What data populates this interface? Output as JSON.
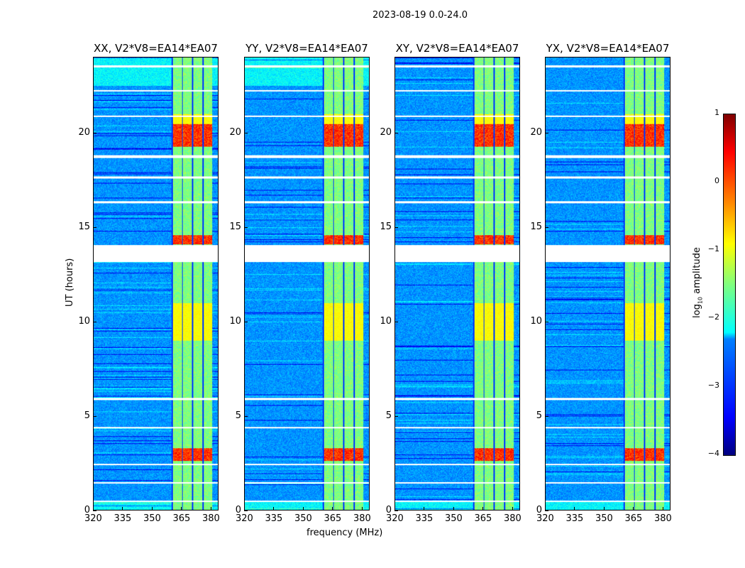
{
  "figure_title": "2023-08-19 0.0-24.0",
  "chart_data": [
    {
      "type": "heatmap",
      "title": "XX, V2*V8=EA14*EA07"
    },
    {
      "type": "heatmap",
      "title": "YY, V2*V8=EA14*EA07"
    },
    {
      "type": "heatmap",
      "title": "XY, V2*V8=EA14*EA07"
    },
    {
      "type": "heatmap",
      "title": "YX, V2*V8=EA14*EA07"
    }
  ],
  "axes": {
    "xlabel": "frequency (MHz)",
    "ylabel": "UT (hours)",
    "xlim": [
      320,
      384
    ],
    "ylim": [
      0,
      24
    ],
    "xticks": [
      "320",
      "335",
      "350",
      "365",
      "380"
    ],
    "xtick_values": [
      320,
      335,
      350,
      365,
      380
    ],
    "yticks": [
      "0",
      "5",
      "10",
      "15",
      "20"
    ],
    "ytick_values": [
      0,
      5,
      10,
      15,
      20
    ],
    "signal_band_mhz": [
      360,
      381
    ],
    "flagged_hours": [
      [
        0.45,
        0.52
      ],
      [
        1.42,
        1.5
      ],
      [
        2.38,
        2.45
      ],
      [
        4.35,
        4.42
      ],
      [
        5.85,
        5.95
      ],
      [
        13.15,
        14.05
      ],
      [
        16.3,
        16.4
      ],
      [
        17.6,
        17.7
      ],
      [
        18.7,
        18.85
      ],
      [
        20.85,
        20.95
      ],
      [
        22.2,
        22.3
      ],
      [
        23.5,
        23.6
      ]
    ],
    "strong_hours": [
      [
        2.6,
        3.3
      ],
      [
        14.1,
        14.6
      ],
      [
        19.3,
        20.5
      ]
    ],
    "moderate_hours": [
      [
        9.0,
        11.0
      ],
      [
        20.5,
        21.0
      ]
    ]
  },
  "colorbar": {
    "label": "log10 amplitude",
    "label_main": "log",
    "label_sub": "10",
    "label_rest": " amplitude",
    "range": [
      -4,
      1
    ],
    "ticks": [
      "1",
      "0",
      "−1",
      "−2",
      "−3",
      "−4"
    ],
    "tick_values": [
      1,
      0,
      -1,
      -2,
      -3,
      -4
    ]
  }
}
